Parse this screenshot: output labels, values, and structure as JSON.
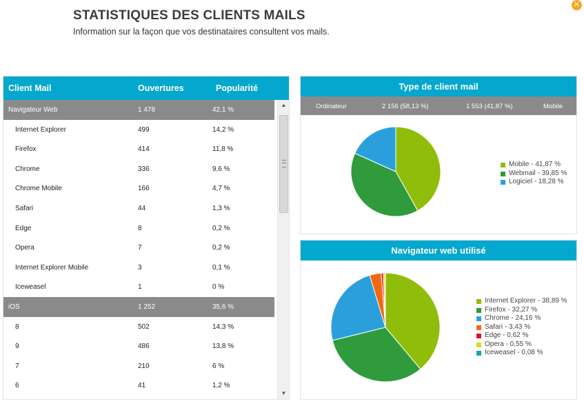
{
  "header": {
    "title": "STATISTIQUES DES CLIENTS MAILS",
    "subtitle": "Information sur la façon que vos destinataires consultent vos mails.",
    "close_label": "✕"
  },
  "table": {
    "columns": [
      "Client Mail",
      "Ouvertures",
      "Popularité"
    ],
    "rows": [
      {
        "type": "group",
        "name": "Navigateur Web",
        "opens": "1 478",
        "pop": "42,1 %"
      },
      {
        "type": "item",
        "name": "Internet Explorer",
        "opens": "499",
        "pop": "14,2 %"
      },
      {
        "type": "item",
        "name": "Firefox",
        "opens": "414",
        "pop": "11,8 %"
      },
      {
        "type": "item",
        "name": "Chrome",
        "opens": "336",
        "pop": "9,6 %"
      },
      {
        "type": "item",
        "name": "Chrome Mobile",
        "opens": "166",
        "pop": "4,7 %"
      },
      {
        "type": "item",
        "name": "Safari",
        "opens": "44",
        "pop": "1,3 %"
      },
      {
        "type": "item",
        "name": "Edge",
        "opens": "8",
        "pop": "0,2 %"
      },
      {
        "type": "item",
        "name": "Opera",
        "opens": "7",
        "pop": "0,2 %"
      },
      {
        "type": "item",
        "name": "Internet Explorer Mobile",
        "opens": "3",
        "pop": "0,1 %"
      },
      {
        "type": "item",
        "name": "Iceweasel",
        "opens": "1",
        "pop": "0 %"
      },
      {
        "type": "group",
        "name": "iOS",
        "opens": "1 252",
        "pop": "35,6 %"
      },
      {
        "type": "item",
        "name": "8",
        "opens": "502",
        "pop": "14,3 %"
      },
      {
        "type": "item",
        "name": "9",
        "opens": "486",
        "pop": "13,8 %"
      },
      {
        "type": "item",
        "name": "7",
        "opens": "210",
        "pop": "6 %"
      },
      {
        "type": "item",
        "name": "6",
        "opens": "41",
        "pop": "1,2 %"
      }
    ],
    "scroll": {
      "up_icon": "▲",
      "down_icon": "▼"
    }
  },
  "chart_data": [
    {
      "type": "pie",
      "title": "Type de client mail",
      "summary": {
        "left_label": "Ordinateur",
        "left_value": "2 156 (58,13 %)",
        "right_value": "1 553 (41,87 %)",
        "right_label": "Mobile"
      },
      "slices": [
        {
          "label": "Mobile - 41,87 %",
          "value": 41.87,
          "color": "#8fbd0a"
        },
        {
          "label": "Webmail - 39,85 %",
          "value": 39.85,
          "color": "#2f9b3d"
        },
        {
          "label": "Logiciel - 18,28 %",
          "value": 18.28,
          "color": "#2b9fdc"
        }
      ],
      "legend_position": "right"
    },
    {
      "type": "pie",
      "title": "Navigateur web utilisé",
      "slices": [
        {
          "label": "Internet Explorer - 38,89 %",
          "value": 38.89,
          "color": "#8fbd0a"
        },
        {
          "label": "Firefox - 32,27 %",
          "value": 32.27,
          "color": "#2f9b3d"
        },
        {
          "label": "Chrome - 24,16 %",
          "value": 24.16,
          "color": "#2b9fdc"
        },
        {
          "label": "Safari - 3,43 %",
          "value": 3.43,
          "color": "#f26a10"
        },
        {
          "label": "Edge - 0,62 %",
          "value": 0.62,
          "color": "#e0122a"
        },
        {
          "label": "Opera - 0,55 %",
          "value": 0.55,
          "color": "#d6dd1a"
        },
        {
          "label": "Iceweasel - 0,08 %",
          "value": 0.08,
          "color": "#1aa7a0"
        }
      ],
      "legend_position": "right"
    }
  ]
}
